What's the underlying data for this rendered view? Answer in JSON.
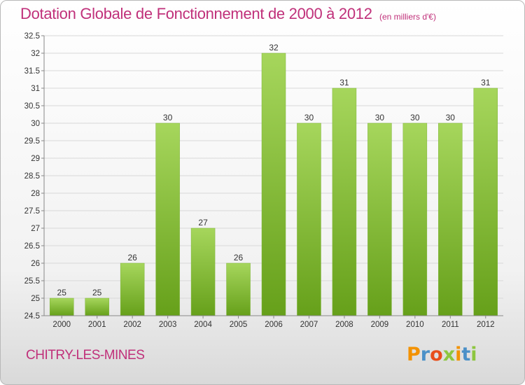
{
  "header": {
    "title": "Dotation Globale de Fonctionnement de 2000 à 2012",
    "unit": "(en milliers d'€)"
  },
  "footer": {
    "commune": "CHITRY-LES-MINES",
    "logo_letters": [
      "P",
      "r",
      "o",
      "x",
      "i",
      "t",
      "i"
    ],
    "logo_colors": [
      "#f39200",
      "#4a90c8",
      "#e84e1b",
      "#8dc63f",
      "#f39200",
      "#4a90c8",
      "#8dc63f"
    ]
  },
  "colors": {
    "bar_light": "#a6d65c",
    "bar_dark": "#66a01a",
    "grid": "#d8d8d8",
    "axis": "#888888"
  },
  "chart_data": {
    "type": "bar",
    "title": "Dotation Globale de Fonctionnement de 2000 à 2012",
    "subtitle": "(en milliers d'€)",
    "xlabel": "",
    "ylabel": "",
    "categories": [
      "2000",
      "2001",
      "2002",
      "2003",
      "2004",
      "2005",
      "2006",
      "2007",
      "2008",
      "2009",
      "2010",
      "2011",
      "2012"
    ],
    "values": [
      25,
      25,
      26,
      30,
      27,
      26,
      32,
      30,
      31,
      30,
      30,
      30,
      31
    ],
    "ylim": [
      24.5,
      32.5
    ],
    "yticks": [
      "24.5",
      "25",
      "25.5",
      "26",
      "26.5",
      "27",
      "27.5",
      "28",
      "28.5",
      "29",
      "29.5",
      "30",
      "30.5",
      "31",
      "31.5",
      "32",
      "32.5"
    ],
    "grid": true,
    "legend": "none"
  }
}
